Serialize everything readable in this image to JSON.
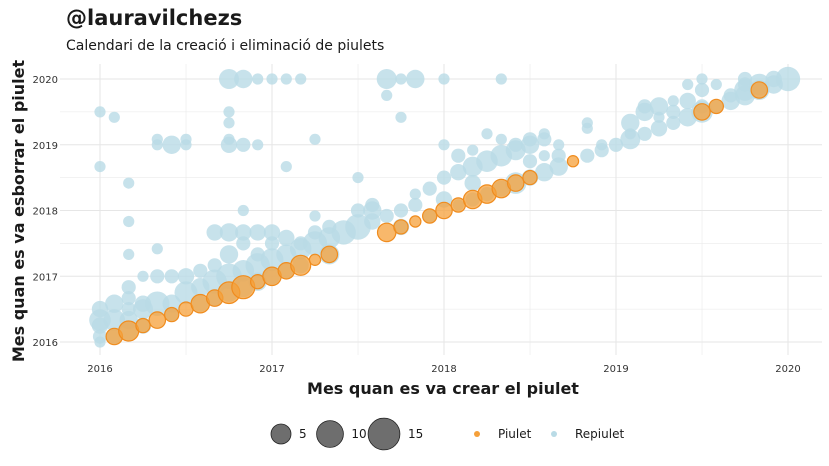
{
  "title": "@lauravilchezs",
  "subtitle": "Calendari de la creació i eliminació de piulets",
  "colors": {
    "piulet": "#f5a03a",
    "repiulet": "#b9dbe6",
    "grid": "#e6e6e6",
    "size_legend": "#555555"
  },
  "chart_data": {
    "type": "scatter",
    "xlabel": "Mes quan es va crear el piulet",
    "ylabel": "Mes quan es va esborrar el piulet",
    "x_ticks": [
      "2016",
      "2017",
      "2018",
      "2019",
      "2020"
    ],
    "y_ticks": [
      "2016",
      "2017",
      "2018",
      "2019",
      "2020"
    ],
    "xlim": [
      2015.92,
      2020.2
    ],
    "ylim": [
      2015.97,
      2020.2
    ],
    "grid": true,
    "legend_position": "bottom",
    "size_legend": {
      "title": "",
      "labels": [
        "5",
        "10",
        "15"
      ],
      "values": [
        5,
        10,
        15
      ]
    },
    "series": [
      {
        "name": "Piulet",
        "color": "#f5a03a",
        "points": [
          [
            2016.083,
            2016.083,
            3
          ],
          [
            2016.167,
            2016.167,
            5
          ],
          [
            2016.25,
            2016.25,
            2
          ],
          [
            2016.333,
            2016.333,
            3
          ],
          [
            2016.417,
            2016.417,
            2
          ],
          [
            2016.5,
            2016.5,
            2
          ],
          [
            2016.583,
            2016.583,
            4
          ],
          [
            2016.667,
            2016.667,
            3
          ],
          [
            2016.75,
            2016.75,
            6
          ],
          [
            2016.833,
            2016.833,
            7
          ],
          [
            2016.917,
            2016.917,
            2
          ],
          [
            2017.0,
            2017.0,
            4
          ],
          [
            2017.083,
            2017.083,
            3
          ],
          [
            2017.167,
            2017.167,
            5
          ],
          [
            2017.25,
            2017.25,
            1
          ],
          [
            2017.333,
            2017.333,
            3
          ],
          [
            2017.667,
            2017.667,
            4
          ],
          [
            2017.75,
            2017.75,
            2
          ],
          [
            2017.833,
            2017.833,
            1
          ],
          [
            2017.917,
            2017.917,
            2
          ],
          [
            2018.0,
            2018.0,
            3
          ],
          [
            2018.083,
            2018.083,
            2
          ],
          [
            2018.167,
            2018.167,
            4
          ],
          [
            2018.25,
            2018.25,
            4
          ],
          [
            2018.333,
            2018.333,
            4
          ],
          [
            2018.417,
            2018.417,
            3
          ],
          [
            2018.5,
            2018.5,
            2
          ],
          [
            2018.75,
            2018.75,
            1
          ],
          [
            2019.5,
            2019.5,
            3
          ],
          [
            2019.583,
            2019.583,
            2
          ],
          [
            2019.833,
            2019.833,
            3
          ]
        ]
      },
      {
        "name": "Repiulet",
        "color": "#b9dbe6",
        "points": [
          [
            2016.0,
            2016.0,
            1
          ],
          [
            2016.0,
            2016.083,
            2
          ],
          [
            2016.0,
            2016.25,
            3
          ],
          [
            2016.0,
            2016.333,
            6
          ],
          [
            2016.0,
            2016.5,
            3
          ],
          [
            2016.0,
            2018.667,
            1
          ],
          [
            2016.0,
            2019.5,
            1
          ],
          [
            2016.083,
            2016.083,
            3
          ],
          [
            2016.083,
            2016.333,
            6
          ],
          [
            2016.083,
            2016.583,
            4
          ],
          [
            2016.083,
            2019.417,
            1
          ],
          [
            2016.167,
            2016.167,
            4
          ],
          [
            2016.167,
            2016.333,
            4
          ],
          [
            2016.167,
            2016.5,
            2
          ],
          [
            2016.167,
            2016.667,
            2
          ],
          [
            2016.167,
            2016.833,
            2
          ],
          [
            2016.167,
            2017.333,
            1
          ],
          [
            2016.167,
            2017.833,
            1
          ],
          [
            2016.167,
            2018.417,
            1
          ],
          [
            2016.25,
            2016.25,
            3
          ],
          [
            2016.25,
            2016.5,
            5
          ],
          [
            2016.25,
            2016.583,
            3
          ],
          [
            2016.25,
            2017.0,
            1
          ],
          [
            2016.333,
            2016.583,
            8
          ],
          [
            2016.333,
            2017.0,
            2
          ],
          [
            2016.333,
            2017.417,
            1
          ],
          [
            2016.333,
            2019.0,
            1
          ],
          [
            2016.333,
            2019.083,
            1
          ],
          [
            2016.417,
            2016.417,
            2
          ],
          [
            2016.417,
            2016.583,
            4
          ],
          [
            2016.417,
            2017.0,
            2
          ],
          [
            2016.417,
            2019.0,
            4
          ],
          [
            2016.5,
            2016.75,
            7
          ],
          [
            2016.5,
            2017.0,
            3
          ],
          [
            2016.5,
            2019.0,
            1
          ],
          [
            2016.5,
            2019.083,
            1
          ],
          [
            2016.583,
            2016.833,
            4
          ],
          [
            2016.583,
            2017.083,
            2
          ],
          [
            2016.583,
            2016.583,
            3
          ],
          [
            2016.667,
            2016.917,
            8
          ],
          [
            2016.667,
            2017.167,
            2
          ],
          [
            2016.667,
            2016.667,
            3
          ],
          [
            2016.667,
            2017.667,
            3
          ],
          [
            2016.75,
            2017.0,
            9
          ],
          [
            2016.75,
            2017.333,
            4
          ],
          [
            2016.75,
            2017.667,
            4
          ],
          [
            2016.75,
            2016.75,
            4
          ],
          [
            2016.75,
            2019.0,
            3
          ],
          [
            2016.75,
            2019.083,
            1
          ],
          [
            2016.75,
            2019.333,
            1
          ],
          [
            2016.75,
            2019.5,
            1
          ],
          [
            2016.75,
            2020.0,
            5
          ],
          [
            2016.833,
            2017.083,
            6
          ],
          [
            2016.833,
            2017.5,
            2
          ],
          [
            2016.833,
            2017.667,
            3
          ],
          [
            2016.833,
            2018.0,
            1
          ],
          [
            2016.833,
            2016.833,
            5
          ],
          [
            2016.833,
            2019.0,
            2
          ],
          [
            2016.833,
            2020.0,
            4
          ],
          [
            2016.917,
            2017.167,
            8
          ],
          [
            2016.917,
            2017.333,
            2
          ],
          [
            2016.917,
            2017.667,
            3
          ],
          [
            2016.917,
            2016.917,
            4
          ],
          [
            2016.917,
            2019.0,
            1
          ],
          [
            2016.917,
            2020.0,
            1
          ],
          [
            2017.0,
            2017.25,
            7
          ],
          [
            2017.0,
            2017.5,
            2
          ],
          [
            2017.0,
            2017.667,
            3
          ],
          [
            2017.0,
            2017.0,
            3
          ],
          [
            2017.0,
            2020.0,
            1
          ],
          [
            2017.083,
            2017.333,
            5
          ],
          [
            2017.083,
            2017.583,
            3
          ],
          [
            2017.083,
            2017.083,
            3
          ],
          [
            2017.083,
            2018.667,
            1
          ],
          [
            2017.083,
            2020.0,
            1
          ],
          [
            2017.167,
            2017.417,
            6
          ],
          [
            2017.167,
            2017.5,
            2
          ],
          [
            2017.167,
            2017.167,
            3
          ],
          [
            2017.167,
            2020.0,
            1
          ],
          [
            2017.25,
            2017.5,
            8
          ],
          [
            2017.25,
            2017.667,
            2
          ],
          [
            2017.25,
            2017.917,
            1
          ],
          [
            2017.25,
            2019.083,
            1
          ],
          [
            2017.333,
            2017.583,
            6
          ],
          [
            2017.333,
            2017.333,
            5
          ],
          [
            2017.333,
            2017.75,
            2
          ],
          [
            2017.417,
            2017.667,
            8
          ],
          [
            2017.5,
            2017.75,
            9
          ],
          [
            2017.5,
            2018.0,
            2
          ],
          [
            2017.5,
            2018.5,
            1
          ],
          [
            2017.583,
            2018.0,
            4
          ],
          [
            2017.583,
            2018.083,
            2
          ],
          [
            2017.583,
            2017.833,
            3
          ],
          [
            2017.667,
            2017.917,
            2
          ],
          [
            2017.667,
            2020.0,
            5
          ],
          [
            2017.667,
            2019.75,
            1
          ],
          [
            2017.75,
            2018.0,
            2
          ],
          [
            2017.75,
            2017.75,
            3
          ],
          [
            2017.75,
            2019.417,
            1
          ],
          [
            2017.75,
            2020.0,
            1
          ],
          [
            2017.833,
            2018.083,
            2
          ],
          [
            2017.833,
            2018.25,
            1
          ],
          [
            2017.833,
            2020.0,
            4
          ],
          [
            2017.917,
            2018.333,
            2
          ],
          [
            2017.917,
            2017.917,
            2
          ],
          [
            2018.0,
            2018.167,
            3
          ],
          [
            2018.0,
            2018.5,
            2
          ],
          [
            2018.0,
            2019.0,
            1
          ],
          [
            2018.0,
            2020.0,
            1
          ],
          [
            2018.083,
            2018.583,
            3
          ],
          [
            2018.083,
            2018.833,
            2
          ],
          [
            2018.083,
            2018.083,
            1
          ],
          [
            2018.167,
            2018.417,
            3
          ],
          [
            2018.167,
            2018.667,
            5
          ],
          [
            2018.167,
            2018.167,
            2
          ],
          [
            2018.167,
            2018.917,
            1
          ],
          [
            2018.25,
            2018.75,
            6
          ],
          [
            2018.25,
            2018.25,
            2
          ],
          [
            2018.25,
            2019.167,
            1
          ],
          [
            2018.333,
            2018.833,
            6
          ],
          [
            2018.333,
            2020.0,
            1
          ],
          [
            2018.333,
            2018.333,
            3
          ],
          [
            2018.333,
            2019.083,
            1
          ],
          [
            2018.417,
            2018.917,
            5
          ],
          [
            2018.417,
            2018.417,
            6
          ],
          [
            2018.417,
            2019.0,
            2
          ],
          [
            2018.5,
            2019.0,
            4
          ],
          [
            2018.5,
            2018.5,
            3
          ],
          [
            2018.5,
            2018.75,
            2
          ],
          [
            2018.5,
            2019.083,
            2
          ],
          [
            2018.583,
            2018.583,
            4
          ],
          [
            2018.583,
            2019.083,
            2
          ],
          [
            2018.583,
            2019.167,
            1
          ],
          [
            2018.583,
            2018.833,
            1
          ],
          [
            2018.667,
            2018.667,
            4
          ],
          [
            2018.667,
            2018.833,
            2
          ],
          [
            2018.667,
            2019.0,
            1
          ],
          [
            2018.833,
            2018.833,
            2
          ],
          [
            2018.833,
            2019.333,
            1
          ],
          [
            2018.833,
            2019.25,
            1
          ],
          [
            2018.917,
            2018.917,
            2
          ],
          [
            2018.917,
            2019.0,
            1
          ],
          [
            2019.0,
            2019.0,
            2
          ],
          [
            2019.083,
            2019.083,
            5
          ],
          [
            2019.083,
            2019.333,
            4
          ],
          [
            2019.083,
            2019.167,
            1
          ],
          [
            2019.167,
            2019.167,
            2
          ],
          [
            2019.167,
            2019.5,
            4
          ],
          [
            2019.167,
            2019.583,
            2
          ],
          [
            2019.25,
            2019.25,
            3
          ],
          [
            2019.25,
            2019.583,
            4
          ],
          [
            2019.25,
            2019.417,
            1
          ],
          [
            2019.333,
            2019.333,
            2
          ],
          [
            2019.333,
            2019.5,
            2
          ],
          [
            2019.333,
            2019.667,
            1
          ],
          [
            2019.417,
            2019.417,
            4
          ],
          [
            2019.417,
            2019.667,
            3
          ],
          [
            2019.417,
            2019.917,
            1
          ],
          [
            2019.5,
            2019.5,
            6
          ],
          [
            2019.5,
            2019.833,
            2
          ],
          [
            2019.5,
            2020.0,
            1
          ],
          [
            2019.5,
            2019.583,
            2
          ],
          [
            2019.583,
            2019.583,
            2
          ],
          [
            2019.583,
            2019.917,
            1
          ],
          [
            2019.667,
            2019.667,
            4
          ],
          [
            2019.667,
            2019.75,
            2
          ],
          [
            2019.75,
            2019.75,
            5
          ],
          [
            2019.75,
            2019.833,
            6
          ],
          [
            2019.75,
            2020.0,
            2
          ],
          [
            2019.75,
            2019.917,
            2
          ],
          [
            2019.833,
            2019.833,
            5
          ],
          [
            2019.833,
            2019.917,
            6
          ],
          [
            2019.917,
            2019.917,
            4
          ],
          [
            2019.917,
            2020.0,
            3
          ],
          [
            2020.0,
            2020.0,
            8
          ]
        ]
      }
    ]
  }
}
